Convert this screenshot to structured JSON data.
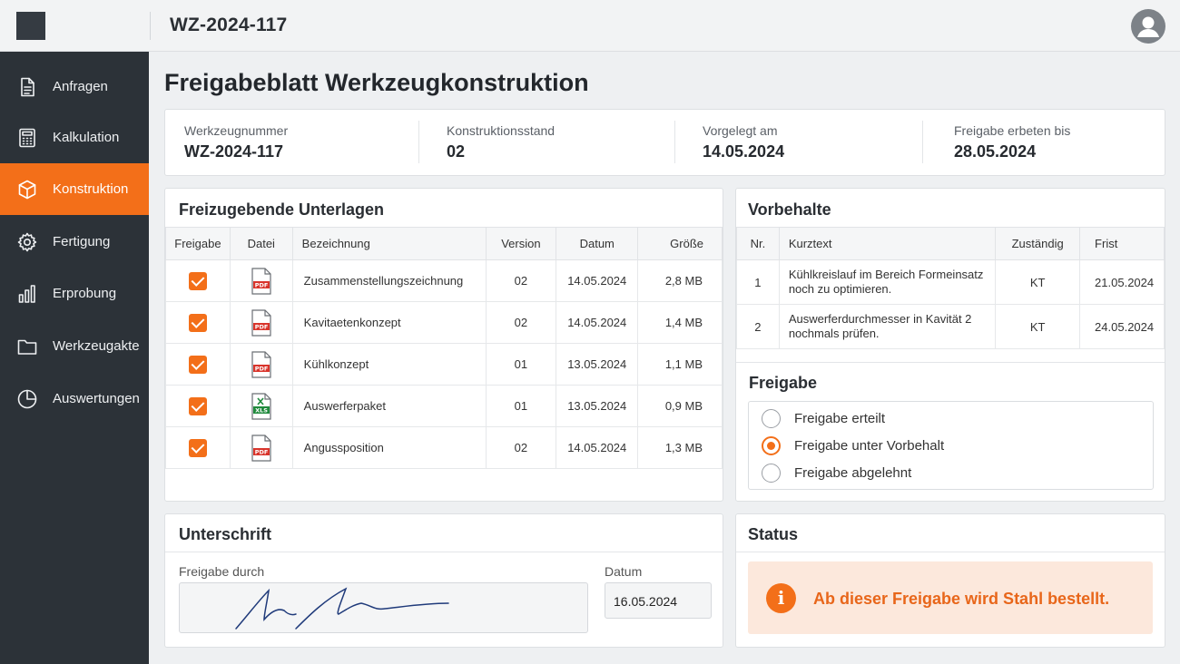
{
  "topbar": {
    "title": "WZ-2024-117"
  },
  "sidebar": {
    "items": [
      {
        "label": "Anfragen",
        "icon": "document-icon"
      },
      {
        "label": "Kalkulation",
        "icon": "calculator-icon"
      },
      {
        "label": "Konstruktion",
        "icon": "cube-icon",
        "active": true
      },
      {
        "label": "Fertigung",
        "icon": "gear-icon"
      },
      {
        "label": "Erprobung",
        "icon": "bar-chart-icon"
      },
      {
        "label": "Werkzeugakte",
        "icon": "folder-icon"
      },
      {
        "label": "Auswertungen",
        "icon": "pie-chart-icon"
      }
    ]
  },
  "page": {
    "title": "Freigabeblatt Werkzeugkonstruktion"
  },
  "info": {
    "fields": [
      {
        "label": "Werkzeugnummer",
        "value": "WZ-2024-117"
      },
      {
        "label": "Konstruktionsstand",
        "value": "02"
      },
      {
        "label": "Vorgelegt am",
        "value": "14.05.2024"
      },
      {
        "label": "Freigabe erbeten bis",
        "value": "28.05.2024"
      }
    ]
  },
  "documents": {
    "title": "Freizugebende Unterlagen",
    "headers": [
      "Freigabe",
      "Datei",
      "Bezeichnung",
      "Version",
      "Datum",
      "Größe"
    ],
    "rows": [
      {
        "checked": true,
        "file_type": "PDF",
        "name": "Zusammenstellungszeichnung",
        "version": "02",
        "date": "14.05.2024",
        "size": "2,8 MB"
      },
      {
        "checked": true,
        "file_type": "PDF",
        "name": "Kavitaetenkonzept",
        "version": "02",
        "date": "14.05.2024",
        "size": "1,4 MB"
      },
      {
        "checked": true,
        "file_type": "PDF",
        "name": "Kühlkonzept",
        "version": "01",
        "date": "13.05.2024",
        "size": "1,1 MB"
      },
      {
        "checked": true,
        "file_type": "XLS",
        "name": "Auswerferpaket",
        "version": "01",
        "date": "13.05.2024",
        "size": "0,9 MB"
      },
      {
        "checked": true,
        "file_type": "PDF",
        "name": "Angussposition",
        "version": "02",
        "date": "14.05.2024",
        "size": "1,3 MB"
      }
    ]
  },
  "reservations": {
    "title": "Vorbehalte",
    "headers": [
      "Nr.",
      "Kurztext",
      "Zuständig",
      "Frist"
    ],
    "rows": [
      {
        "nr": "1",
        "text": "Kühlkreislauf im Bereich Formeinsatz noch zu optimieren.",
        "owner": "KT",
        "deadline": "21.05.2024"
      },
      {
        "nr": "2",
        "text": "Auswerferdurchmesser in Kavität 2 nochmals prüfen.",
        "owner": "KT",
        "deadline": "24.05.2024"
      }
    ]
  },
  "approval": {
    "title": "Freigabe",
    "options": [
      {
        "label": "Freigabe erteilt",
        "selected": false
      },
      {
        "label": "Freigabe unter Vorbehalt",
        "selected": true
      },
      {
        "label": "Freigabe abgelehnt",
        "selected": false
      }
    ]
  },
  "signature": {
    "title": "Unterschrift",
    "by_label": "Freigabe durch",
    "date_label": "Datum",
    "date_value": "16.05.2024"
  },
  "status": {
    "title": "Status",
    "message": "Ab dieser Freigabe wird Stahl bestellt."
  },
  "colors": {
    "accent": "#f36f19",
    "sidebar": "#2c3238",
    "pdf": "#d9342b",
    "xls": "#1f8a3c"
  }
}
